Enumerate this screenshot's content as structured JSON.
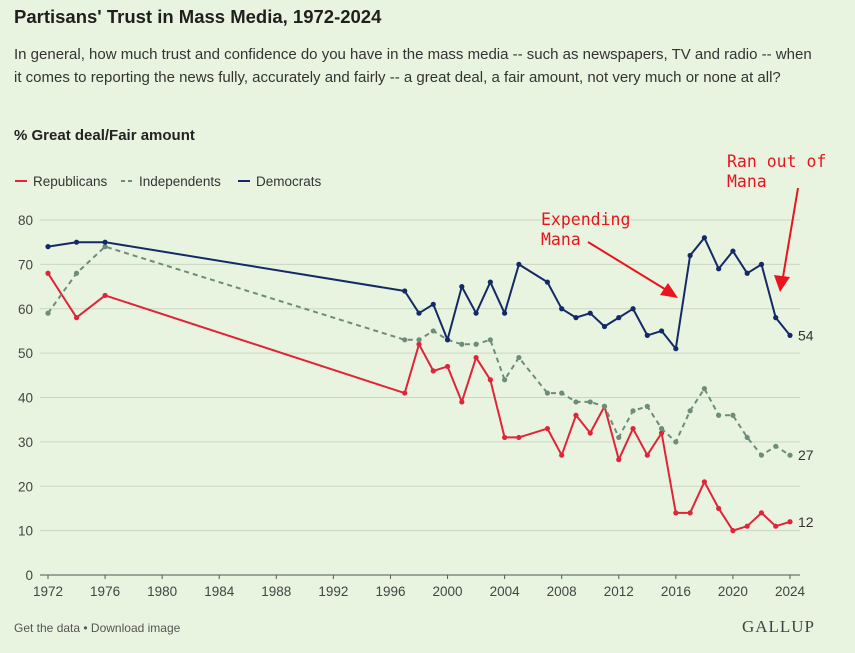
{
  "header": {
    "title": "Partisans' Trust in Mass Media, 1972-2024",
    "subtitle": "In general, how much trust and confidence do you have in the mass media -- such as newspapers, TV and radio -- when it comes to reporting the news fully, accurately and fairly -- a great deal, a fair amount, not very much or none at all?",
    "measure": "% Great deal/Fair amount"
  },
  "footer": {
    "get_data": "Get the data",
    "separator": " • ",
    "download": "Download image",
    "logo": "GALLUP"
  },
  "chart_data": {
    "type": "line",
    "ylim": [
      0,
      80
    ],
    "yticks": [
      0,
      10,
      20,
      30,
      40,
      50,
      60,
      70,
      80
    ],
    "xlim": [
      1972,
      2024
    ],
    "xticks": [
      1972,
      1976,
      1980,
      1984,
      1988,
      1992,
      1996,
      2000,
      2004,
      2008,
      2012,
      2016,
      2020,
      2024
    ],
    "grid": "horizontal",
    "legend_position": "top-left",
    "series": [
      {
        "name": "Republicans",
        "color": "#e0243a",
        "style": "solid",
        "end_label": "12",
        "points": [
          [
            1972,
            68
          ],
          [
            1974,
            58
          ],
          [
            1976,
            63
          ],
          [
            1997,
            41
          ],
          [
            1998,
            52
          ],
          [
            1999,
            46
          ],
          [
            2000,
            47
          ],
          [
            2001,
            39
          ],
          [
            2002,
            49
          ],
          [
            2003,
            44
          ],
          [
            2004,
            31
          ],
          [
            2005,
            31
          ],
          [
            2007,
            33
          ],
          [
            2008,
            27
          ],
          [
            2009,
            36
          ],
          [
            2010,
            32
          ],
          [
            2011,
            38
          ],
          [
            2012,
            26
          ],
          [
            2013,
            33
          ],
          [
            2014,
            27
          ],
          [
            2015,
            32
          ],
          [
            2016,
            14
          ],
          [
            2017,
            14
          ],
          [
            2018,
            21
          ],
          [
            2019,
            15
          ],
          [
            2020,
            10
          ],
          [
            2021,
            11
          ],
          [
            2022,
            14
          ],
          [
            2023,
            11
          ],
          [
            2024,
            12
          ]
        ]
      },
      {
        "name": "Independents",
        "color": "#6e8c7a",
        "style": "dashed",
        "end_label": "27",
        "points": [
          [
            1972,
            59
          ],
          [
            1974,
            68
          ],
          [
            1976,
            74
          ],
          [
            1997,
            53
          ],
          [
            1998,
            53
          ],
          [
            1999,
            55
          ],
          [
            2000,
            53
          ],
          [
            2001,
            52
          ],
          [
            2002,
            52
          ],
          [
            2003,
            53
          ],
          [
            2004,
            44
          ],
          [
            2005,
            49
          ],
          [
            2007,
            41
          ],
          [
            2008,
            41
          ],
          [
            2009,
            39
          ],
          [
            2010,
            39
          ],
          [
            2011,
            38
          ],
          [
            2012,
            31
          ],
          [
            2013,
            37
          ],
          [
            2014,
            38
          ],
          [
            2015,
            33
          ],
          [
            2016,
            30
          ],
          [
            2017,
            37
          ],
          [
            2018,
            42
          ],
          [
            2019,
            36
          ],
          [
            2020,
            36
          ],
          [
            2021,
            31
          ],
          [
            2022,
            27
          ],
          [
            2023,
            29
          ],
          [
            2024,
            27
          ]
        ]
      },
      {
        "name": "Democrats",
        "color": "#142a66",
        "style": "solid",
        "end_label": "54",
        "points": [
          [
            1972,
            74
          ],
          [
            1974,
            75
          ],
          [
            1976,
            75
          ],
          [
            1997,
            64
          ],
          [
            1998,
            59
          ],
          [
            1999,
            61
          ],
          [
            2000,
            53
          ],
          [
            2001,
            65
          ],
          [
            2002,
            59
          ],
          [
            2003,
            66
          ],
          [
            2004,
            59
          ],
          [
            2005,
            70
          ],
          [
            2007,
            66
          ],
          [
            2008,
            60
          ],
          [
            2009,
            58
          ],
          [
            2010,
            59
          ],
          [
            2011,
            56
          ],
          [
            2012,
            58
          ],
          [
            2013,
            60
          ],
          [
            2014,
            54
          ],
          [
            2015,
            55
          ],
          [
            2016,
            51
          ],
          [
            2017,
            72
          ],
          [
            2018,
            76
          ],
          [
            2019,
            69
          ],
          [
            2020,
            73
          ],
          [
            2021,
            68
          ],
          [
            2022,
            70
          ],
          [
            2023,
            58
          ],
          [
            2024,
            54
          ]
        ]
      }
    ],
    "annotations": [
      {
        "text_lines": [
          "Expending",
          "Mana"
        ],
        "color": "#e8141e"
      },
      {
        "text_lines": [
          "Ran out of",
          "Mana"
        ],
        "color": "#e8141e"
      }
    ]
  }
}
